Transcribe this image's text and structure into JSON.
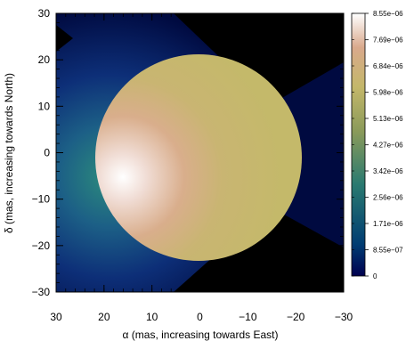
{
  "chart_data": {
    "type": "heatmap",
    "title": "",
    "xlabel": "α (mas, increasing towards East)",
    "ylabel": "δ (mas, increasing towards North)",
    "xlim": [
      30,
      -30
    ],
    "ylim": [
      -30,
      30
    ],
    "x_ticks": [
      "30",
      "20",
      "10",
      "0",
      "−10",
      "−20",
      "−30"
    ],
    "x_tick_values": [
      30,
      20,
      10,
      0,
      -10,
      -20,
      -30
    ],
    "y_ticks": [
      "−30",
      "−20",
      "−10",
      "0",
      "10",
      "20",
      "30"
    ],
    "y_tick_values": [
      -30,
      -20,
      -10,
      0,
      10,
      20,
      30
    ],
    "colorbar": {
      "min": 0,
      "max": 8.55e-06,
      "tick_labels": [
        "8.55e−06",
        "7.69e−06",
        "6.84e−06",
        "5.98e−06",
        "5.13e−06",
        "4.27e−06",
        "3.42e−06",
        "2.56e−06",
        "1.71e−06",
        "8.55e−07",
        "0"
      ],
      "tick_values": [
        8.55e-06,
        7.69e-06,
        6.84e-06,
        5.98e-06,
        5.13e-06,
        4.27e-06,
        3.42e-06,
        2.56e-06,
        1.71e-06,
        8.55e-07,
        0
      ],
      "colors": [
        "#000050",
        "#003c72",
        "#2a7a70",
        "#8a9a5a",
        "#c4b76a",
        "#d9a98c",
        "#ffffff"
      ]
    },
    "disk": {
      "center": [
        0,
        0
      ],
      "radius": 21.5,
      "base_value": 6.2e-06,
      "peak_value": 8.55e-06,
      "peak_position": [
        14,
        -5
      ]
    },
    "background": {
      "peak_value": 3.2e-06,
      "peak_position": [
        16,
        -4
      ],
      "dark_corners": [
        "upper-right",
        "lower-right",
        "upper-left"
      ],
      "min_value": 0
    },
    "grid": false
  }
}
